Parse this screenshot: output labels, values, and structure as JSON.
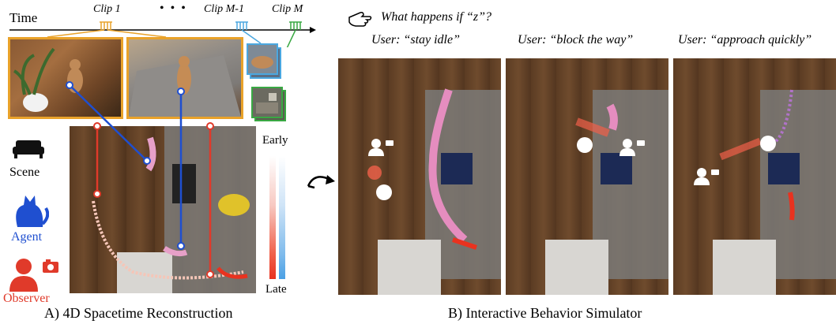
{
  "timeline": {
    "label": "Time",
    "clips": [
      "Clip 1",
      "• • •",
      "Clip M-1",
      "Clip M"
    ]
  },
  "legend": {
    "scene": "Scene",
    "agent": "Agent",
    "observer": "Observer"
  },
  "colorbar": {
    "early": "Early",
    "late": "Late"
  },
  "captions": {
    "a": "A) 4D Spacetime Reconstruction",
    "b": "B) Interactive Behavior Simulator"
  },
  "simulator": {
    "question": "What happens if “z”?",
    "users": [
      "User: “stay idle”",
      "User: “block the way”",
      "User: “approach quickly”"
    ]
  },
  "colors": {
    "clip_orange": "#e9a22a",
    "clip_blue": "#4aa7e0",
    "clip_green": "#39a843",
    "agent_blue": "#1f4fd0",
    "observer_red": "#e03a2a"
  }
}
